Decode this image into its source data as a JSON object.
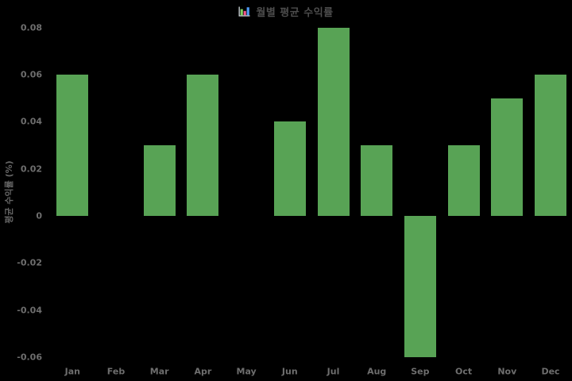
{
  "chart_data": {
    "type": "bar",
    "title": "월별 평균 수익률",
    "title_icon": "bar-chart-icon",
    "categories": [
      "Jan",
      "Feb",
      "Mar",
      "Apr",
      "May",
      "Jun",
      "Jul",
      "Aug",
      "Sep",
      "Oct",
      "Nov",
      "Dec"
    ],
    "values": [
      0.06,
      0,
      0.03,
      0.06,
      0,
      0.04,
      0.08,
      0.03,
      -0.06,
      0.03,
      0.05,
      0.06
    ],
    "xlabel": "",
    "ylabel": "평균 수익률 (%)",
    "ytick_labels": [
      "0.08",
      "0.06",
      "0.04",
      "0.02",
      "0",
      "-0.02",
      "-0.04",
      "-0.06"
    ],
    "ytick_values": [
      0.08,
      0.06,
      0.04,
      0.02,
      0,
      -0.02,
      -0.04,
      -0.06
    ],
    "ylim": [
      -0.065,
      0.085
    ],
    "grid": false,
    "legend": null,
    "colors": {
      "bar": "#58A355",
      "background": "#000000",
      "tick_label": "#6E6E6E",
      "title": "#4D4D4D",
      "axis_label": "#666666",
      "icon_green": "#7FD063",
      "icon_pink": "#F2598B",
      "icon_blue": "#4F9BF5",
      "icon_axis": "#CFD8DC"
    }
  }
}
